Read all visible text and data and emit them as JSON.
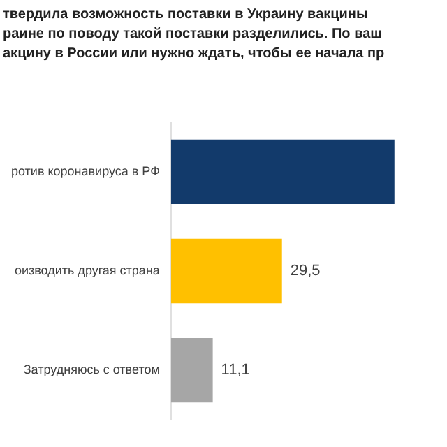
{
  "chart_data": {
    "type": "bar",
    "orientation": "horizontal",
    "title": "твердила возможность поставки в Украину вакцины\nраине по поводу такой поставки разделились. По ваш\nакцину в России или нужно ждать, чтобы ее начала пр",
    "categories": [
      "ротив коронавируса в РФ",
      "оизводить другая страна",
      "Затрудняюсь с ответом"
    ],
    "values": [
      59.4,
      29.5,
      11.1
    ],
    "colors": [
      "#123a6b",
      "#ffc000",
      "#a6a6a6"
    ],
    "value_labels": [
      null,
      "29,5",
      "11,1"
    ],
    "legend": false
  }
}
